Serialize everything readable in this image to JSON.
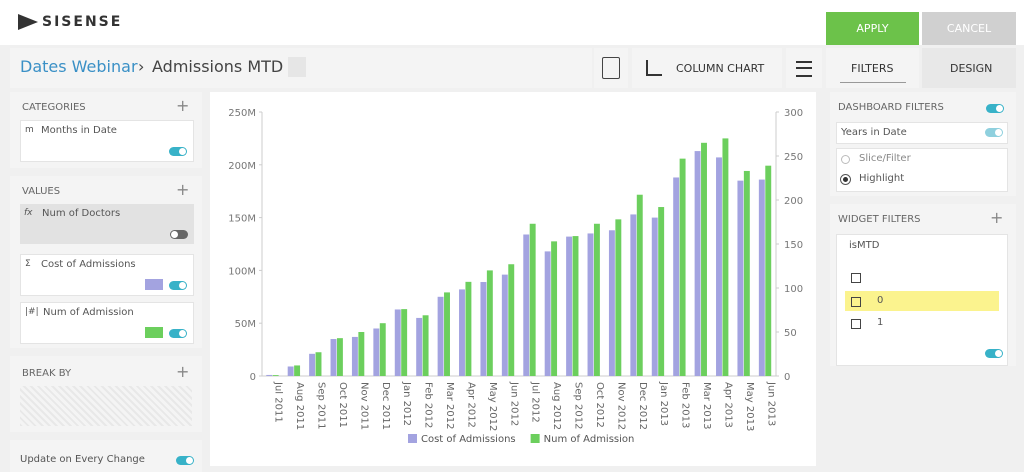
{
  "header": {
    "logo": "SISENSE",
    "apply": "APPLY",
    "cancel": "CANCEL"
  },
  "toolbar": {
    "breadcrumb_root": "Dates Webinar",
    "breadcrumb_separator": "›",
    "title": "Admissions MTD",
    "chart_type": "COLUMN CHART"
  },
  "tabs": [
    "FILTERS",
    "DESIGN"
  ],
  "left_panel": {
    "categories": {
      "title": "CATEGORIES",
      "items": [
        {
          "icon": "m",
          "label": "Months in Date"
        }
      ]
    },
    "values": {
      "title": "VALUES",
      "items": [
        {
          "icon": "fx",
          "label": "Num of Doctors"
        },
        {
          "icon": "Σ",
          "label": "Cost of Admissions"
        },
        {
          "icon": "|#|",
          "label": "Num of Admission"
        }
      ]
    },
    "break_by": {
      "title": "BREAK BY"
    },
    "update": "Update on Every Change"
  },
  "chart_data": {
    "type": "bar",
    "categories": [
      "Jul 2011",
      "Aug 2011",
      "Sep 2011",
      "Oct 2011",
      "Nov 2011",
      "Dec 2011",
      "Jan 2012",
      "Feb 2012",
      "Mar 2012",
      "Apr 2012",
      "May 2012",
      "Jun 2012",
      "Jul 2012",
      "Aug 2012",
      "Sep 2012",
      "Oct 2012",
      "Nov 2012",
      "Dec 2012",
      "Jan 2013",
      "Feb 2013",
      "Mar 2013",
      "Apr 2013",
      "May 2013",
      "Jun 2013"
    ],
    "series": [
      {
        "name": "Cost of Admissions",
        "color": "#a3a3e0",
        "values": [
          1000000,
          9000000,
          21000000,
          35000000,
          37000000,
          45000000,
          63000000,
          55000000,
          75000000,
          82000000,
          89000000,
          96000000,
          134000000,
          118000000,
          132000000,
          135000000,
          138000000,
          153000000,
          150000000,
          188000000,
          213000000,
          207000000,
          185000000,
          186000000
        ]
      },
      {
        "name": "Num of Admission",
        "color": "#6ccf5d",
        "axis": "y2",
        "values": [
          1,
          12,
          27,
          43,
          50,
          60,
          76,
          69,
          95,
          107,
          120,
          127,
          173,
          153,
          159,
          173,
          178,
          206,
          192,
          247,
          265,
          270,
          233,
          239
        ]
      }
    ],
    "ylim": [
      0,
      250000000
    ],
    "yticks": [
      0,
      {
        "value": 50000000,
        "label": "50M"
      },
      {
        "value": 100000000,
        "label": "100M"
      },
      {
        "value": 150000000,
        "label": "150M"
      },
      {
        "value": 200000000,
        "label": "200M"
      },
      {
        "value": 250000000,
        "label": "250M"
      }
    ],
    "y2lim": [
      0,
      300
    ],
    "y2ticks": [
      0,
      50,
      100,
      150,
      200,
      250,
      300
    ],
    "legend": "bottom"
  },
  "right_panel": {
    "dashboard_filters": {
      "title": "DASHBOARD FILTERS",
      "item": "Years in Date",
      "modes": [
        "Slice/Filter",
        "Highlight"
      ]
    },
    "widget_filters": {
      "title": "WIDGET FILTERS",
      "field": "isMTD",
      "members": [
        "0",
        "1"
      ]
    }
  }
}
